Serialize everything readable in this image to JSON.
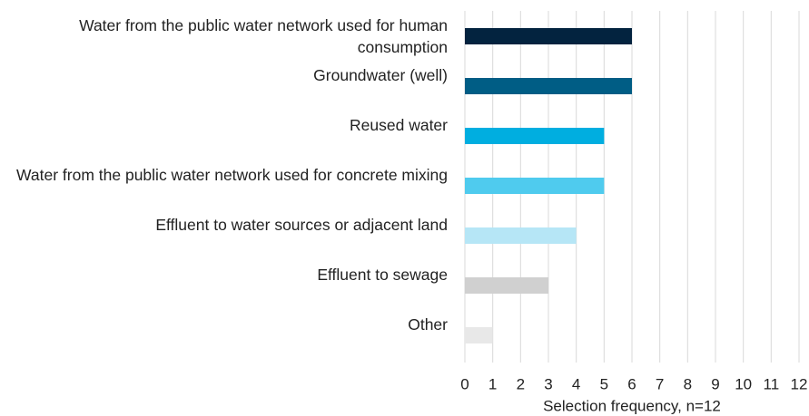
{
  "chart_data": {
    "type": "bar",
    "orientation": "horizontal",
    "categories": [
      "Water from the public water network used for human consumption",
      "Groundwater (well)",
      "Reused water",
      "Water from the public water network used for concrete mixing",
      "Effluent to water sources or adjacent land",
      "Effluent to sewage",
      "Other"
    ],
    "values": [
      6,
      6,
      5,
      5,
      4,
      3,
      1
    ],
    "colors": [
      "#03233f",
      "#005d85",
      "#00aee0",
      "#4fcbee",
      "#b6e6f6",
      "#d0d0d0",
      "#e8e8e8"
    ],
    "xlim": [
      0,
      12
    ],
    "xticks": [
      0,
      1,
      2,
      3,
      4,
      5,
      6,
      7,
      8,
      9,
      10,
      11,
      12
    ],
    "xlabel": "Selection frequency, n=12",
    "grid": true
  }
}
